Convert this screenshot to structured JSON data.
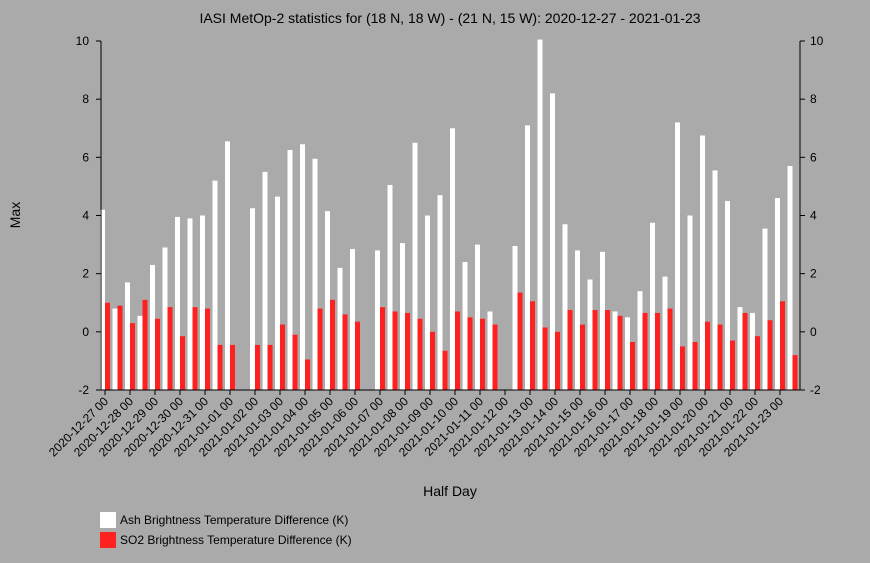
{
  "chart_data": {
    "type": "bar",
    "title": "IASI MetOp-2 statistics for (18 N, 18 W) - (21 N, 15 W): 2020-12-27 - 2021-01-23",
    "xlabel": "Half Day",
    "ylabel": "Max",
    "ylim": [
      -2,
      10
    ],
    "yticks": [
      -2,
      0,
      2,
      4,
      6,
      8,
      10
    ],
    "x_tick_labels": [
      "2020-12-27 00",
      "2020-12-28 00",
      "2020-12-29 00",
      "2020-12-30 00",
      "2020-12-31 00",
      "2021-01-01 00",
      "2021-01-02 00",
      "2021-01-03 00",
      "2021-01-04 00",
      "2021-01-05 00",
      "2021-01-06 00",
      "2021-01-07 00",
      "2021-01-08 00",
      "2021-01-09 00",
      "2021-01-10 00",
      "2021-01-11 00",
      "2021-01-12 00",
      "2021-01-13 00",
      "2021-01-14 00",
      "2021-01-15 00",
      "2021-01-16 00",
      "2021-01-17 00",
      "2021-01-18 00",
      "2021-01-19 00",
      "2021-01-20 00",
      "2021-01-21 00",
      "2021-01-22 00",
      "2021-01-23 00"
    ],
    "series": [
      {
        "name": "Ash Brightness Temperature Difference (K)",
        "color": "#ffffff",
        "values": [
          4.2,
          0.8,
          1.7,
          0.55,
          2.3,
          2.9,
          3.95,
          3.9,
          4.0,
          5.2,
          6.55,
          null,
          4.25,
          5.5,
          4.65,
          6.25,
          6.45,
          5.95,
          4.15,
          2.2,
          2.85,
          null,
          2.8,
          5.05,
          3.05,
          6.5,
          4.0,
          4.7,
          7.0,
          2.4,
          3.0,
          0.7,
          null,
          2.95,
          7.1,
          10.1,
          8.2,
          3.7,
          2.8,
          1.8,
          2.75,
          0.7,
          0.5,
          1.4,
          3.75,
          1.9,
          7.2,
          4.0,
          6.75,
          5.55,
          4.5,
          0.85,
          0.65,
          3.55,
          4.6,
          5.7
        ]
      },
      {
        "name": "SO2 Brightness Temperature Difference (K)",
        "color": "#ff2020",
        "values": [
          1.0,
          0.9,
          0.3,
          1.1,
          0.45,
          0.85,
          -0.15,
          0.85,
          0.8,
          -0.45,
          -0.45,
          null,
          -0.45,
          -0.45,
          0.25,
          -0.1,
          -0.95,
          0.8,
          1.1,
          0.6,
          0.35,
          null,
          0.85,
          0.7,
          0.65,
          0.45,
          0.0,
          -0.65,
          0.7,
          0.5,
          0.45,
          0.25,
          null,
          1.35,
          1.05,
          0.15,
          0.0,
          0.75,
          0.25,
          0.75,
          0.75,
          0.55,
          -0.35,
          0.65,
          0.65,
          0.8,
          -0.5,
          -0.35,
          0.35,
          0.25,
          -0.3,
          0.65,
          -0.15,
          0.4,
          1.05,
          -0.8
        ]
      }
    ],
    "legend_position": "bottom-left",
    "grid": false
  }
}
